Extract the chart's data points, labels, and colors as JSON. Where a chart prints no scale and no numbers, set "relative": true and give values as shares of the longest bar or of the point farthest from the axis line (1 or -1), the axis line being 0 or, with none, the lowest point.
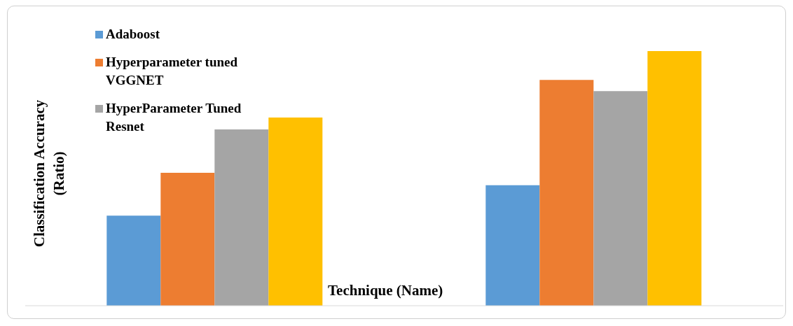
{
  "chart_data": {
    "type": "bar",
    "relative": true,
    "xlabel": "Technique (Name)",
    "ylabel": "Classification Accuracy (Ratio)",
    "categories": [
      null,
      null
    ],
    "legend": "top left",
    "grid": false,
    "series": [
      {
        "name": "Adaboost",
        "color": "#5b9bd5",
        "values": [
          0.354,
          0.473
        ]
      },
      {
        "name": "Hyperparameter tuned VGGNET",
        "color": "#ed7d31",
        "values": [
          0.522,
          0.887
        ]
      },
      {
        "name": "HyperParameter Tuned Resnet",
        "color": "#a5a5a5",
        "values": [
          0.692,
          0.843
        ]
      },
      {
        "color": "#ffc000",
        "values": [
          0.739,
          1
        ]
      }
    ]
  }
}
